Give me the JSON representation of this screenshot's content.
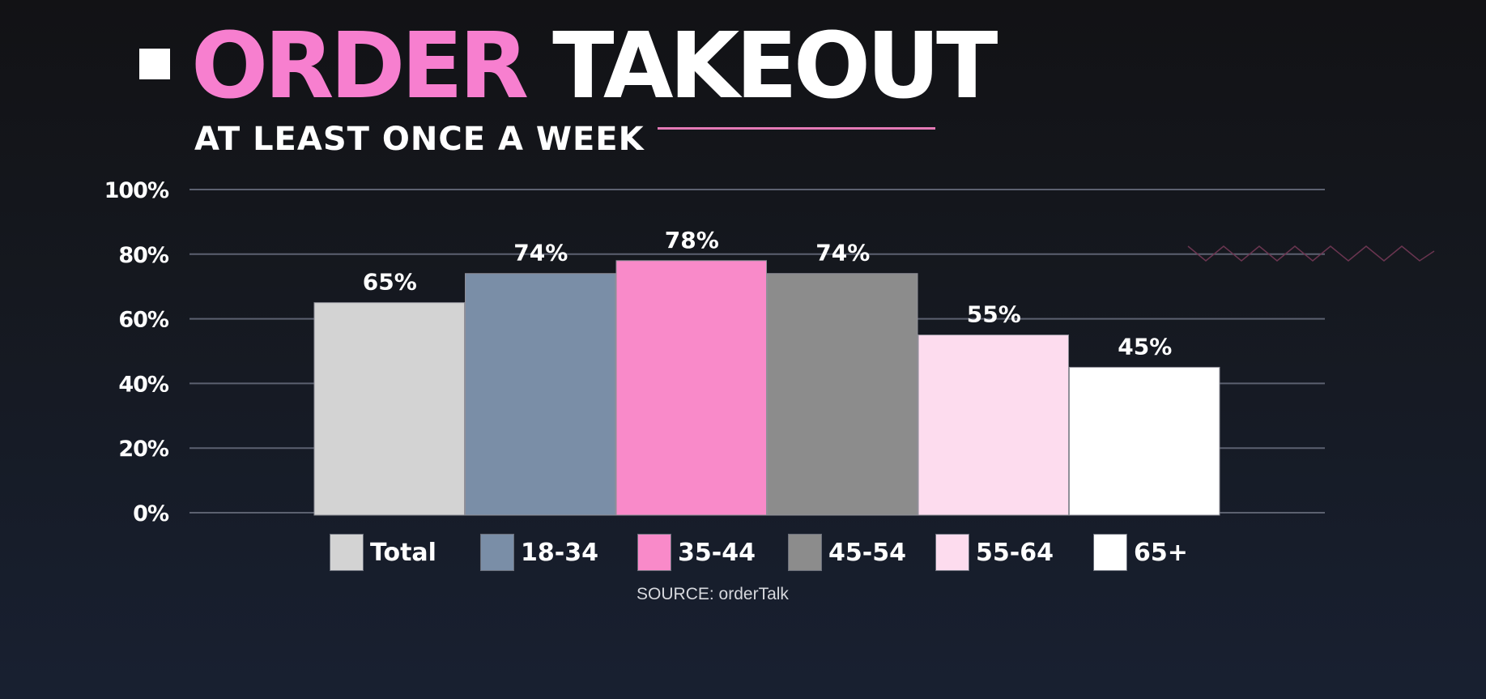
{
  "header": {
    "title_part1": "ORDER",
    "title_part2": "TAKEOUT",
    "subtitle": "AT LEAST ONCE A WEEK"
  },
  "source": "SOURCE: orderTalk",
  "colors": {
    "accent_pink": "#f77fcf",
    "background": "#14171e",
    "gridline": "#5c6170"
  },
  "chart_data": {
    "type": "bar",
    "title": "ORDER TAKEOUT",
    "subtitle": "AT LEAST ONCE A WEEK",
    "categories": [
      "Total",
      "18-34",
      "35-44",
      "45-54",
      "55-64",
      "65+"
    ],
    "values": [
      65,
      74,
      78,
      74,
      55,
      45
    ],
    "value_labels": [
      "65%",
      "74%",
      "78%",
      "74%",
      "55%",
      "45%"
    ],
    "bar_colors": [
      "#d3d3d3",
      "#7a8ea7",
      "#f98ac9",
      "#8c8c8c",
      "#fddcee",
      "#ffffff"
    ],
    "yticks": [
      0,
      20,
      40,
      60,
      80,
      100
    ],
    "ytick_labels": [
      "0%",
      "20%",
      "40%",
      "60%",
      "80%",
      "100%"
    ],
    "ylim": [
      0,
      100
    ],
    "xlabel": "",
    "ylabel": "",
    "grid": true,
    "legend_position": "bottom"
  }
}
